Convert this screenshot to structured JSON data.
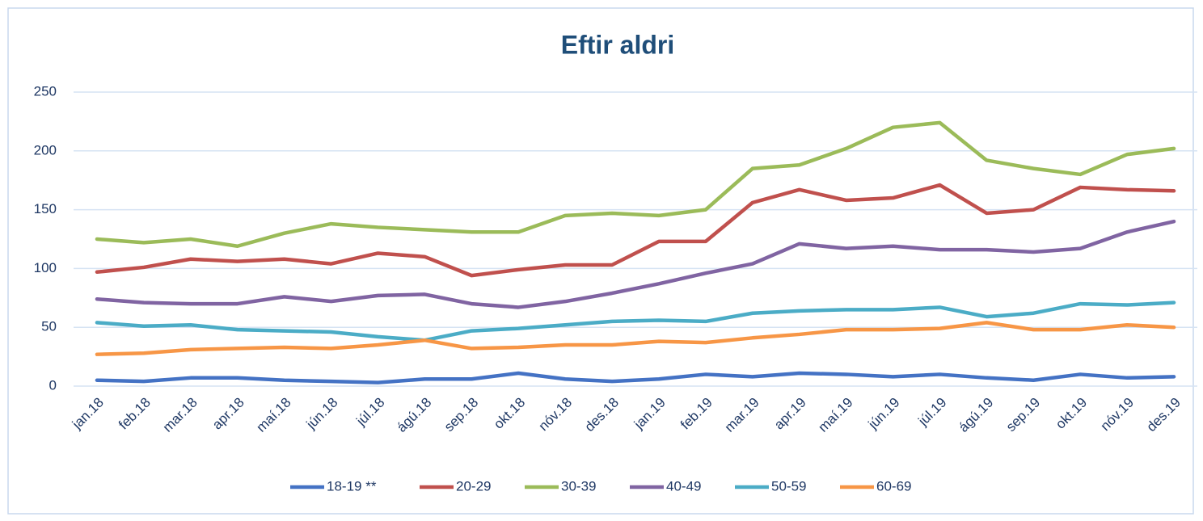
{
  "chart_data": {
    "type": "line",
    "title": "Eftir aldri",
    "categories": [
      "jan.18",
      "feb.18",
      "mar.18",
      "apr.18",
      "maí.18",
      "jún.18",
      "júl.18",
      "ágú.18",
      "sep.18",
      "okt.18",
      "nóv.18",
      "des.18",
      "jan.19",
      "feb.19",
      "mar.19",
      "apr.19",
      "maí.19",
      "jún.19",
      "júl.19",
      "ágú.19",
      "sep.19",
      "okt.19",
      "nóv.19",
      "des.19"
    ],
    "series": [
      {
        "name": "18-19 **",
        "color": "#4472c4",
        "values": [
          5,
          4,
          7,
          7,
          5,
          4,
          3,
          6,
          6,
          11,
          6,
          4,
          6,
          10,
          8,
          11,
          10,
          8,
          10,
          7,
          5,
          10,
          7,
          8
        ]
      },
      {
        "name": "20-29",
        "color": "#c0504d",
        "values": [
          97,
          101,
          108,
          106,
          108,
          104,
          113,
          110,
          94,
          99,
          103,
          103,
          123,
          123,
          156,
          167,
          158,
          160,
          171,
          147,
          150,
          169,
          167,
          166
        ]
      },
      {
        "name": "30-39",
        "color": "#9bbb59",
        "values": [
          125,
          122,
          125,
          119,
          130,
          138,
          135,
          133,
          131,
          131,
          145,
          147,
          145,
          150,
          185,
          188,
          202,
          220,
          224,
          192,
          185,
          180,
          197,
          202
        ]
      },
      {
        "name": "40-49",
        "color": "#8064a2",
        "values": [
          74,
          71,
          70,
          70,
          76,
          72,
          77,
          78,
          70,
          67,
          72,
          79,
          87,
          96,
          104,
          121,
          117,
          119,
          116,
          116,
          114,
          117,
          131,
          140
        ]
      },
      {
        "name": "50-59",
        "color": "#4bacc6",
        "values": [
          54,
          51,
          52,
          48,
          47,
          46,
          42,
          39,
          47,
          49,
          52,
          55,
          56,
          55,
          62,
          64,
          65,
          65,
          67,
          59,
          62,
          70,
          69,
          71
        ]
      },
      {
        "name": "60-69",
        "color": "#f79646",
        "values": [
          27,
          28,
          31,
          32,
          33,
          32,
          35,
          39,
          32,
          33,
          35,
          35,
          38,
          37,
          41,
          44,
          48,
          48,
          49,
          54,
          48,
          48,
          52,
          50
        ]
      }
    ],
    "ylim": [
      0,
      250
    ],
    "yticks": [
      0,
      50,
      100,
      150,
      200,
      250
    ],
    "grid": true,
    "legend": "bottom"
  }
}
